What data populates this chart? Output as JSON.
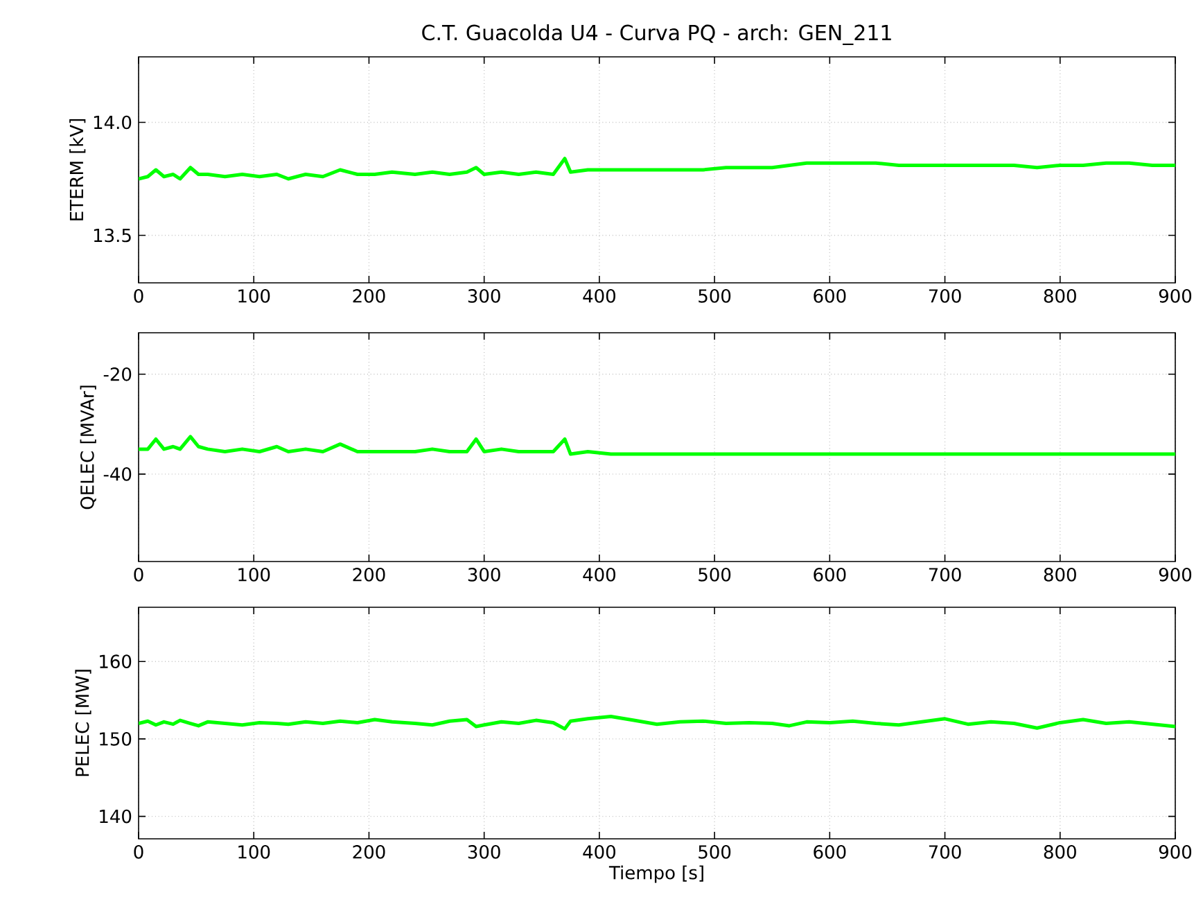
{
  "chart_data": [
    {
      "type": "line",
      "title": "C.T. Guacolda U4 - Curva PQ - arch: GEN_211",
      "ylabel": "ETERM [kV]",
      "xlim": [
        0,
        900
      ],
      "xticks": [
        0,
        100,
        200,
        300,
        400,
        500,
        600,
        700,
        800,
        900
      ],
      "ylim": [
        13.29,
        14.29
      ],
      "yticks": [
        {
          "value": 13.5,
          "label": "13.5"
        },
        {
          "value": 14,
          "label": "14.0"
        }
      ],
      "grid": true,
      "line_style": "solid",
      "series": [
        {
          "color": "#00ff00",
          "x": [
            0,
            8,
            15,
            22,
            30,
            36,
            45,
            52,
            60,
            75,
            90,
            105,
            120,
            130,
            145,
            160,
            175,
            190,
            205,
            220,
            240,
            255,
            270,
            285,
            293,
            300,
            315,
            330,
            345,
            360,
            370,
            375,
            390,
            410,
            430,
            450,
            470,
            490,
            510,
            530,
            550,
            565,
            580,
            600,
            620,
            640,
            660,
            680,
            700,
            720,
            740,
            760,
            780,
            800,
            820,
            840,
            860,
            880,
            900
          ],
          "values": [
            13.75,
            13.76,
            13.79,
            13.76,
            13.77,
            13.75,
            13.8,
            13.77,
            13.77,
            13.76,
            13.77,
            13.76,
            13.77,
            13.75,
            13.77,
            13.76,
            13.79,
            13.77,
            13.77,
            13.78,
            13.77,
            13.78,
            13.77,
            13.78,
            13.8,
            13.77,
            13.78,
            13.77,
            13.78,
            13.77,
            13.84,
            13.78,
            13.79,
            13.79,
            13.79,
            13.79,
            13.79,
            13.79,
            13.8,
            13.8,
            13.8,
            13.81,
            13.82,
            13.82,
            13.82,
            13.82,
            13.81,
            13.81,
            13.81,
            13.81,
            13.81,
            13.81,
            13.8,
            13.81,
            13.81,
            13.82,
            13.82,
            13.81,
            13.81
          ]
        }
      ]
    },
    {
      "type": "line",
      "ylabel": "QELEC [MVAr]",
      "xlim": [
        0,
        900
      ],
      "xticks": [
        0,
        100,
        200,
        300,
        400,
        500,
        600,
        700,
        800,
        900
      ],
      "ylim": [
        -57.5,
        -11.7
      ],
      "yticks": [
        -40,
        -20
      ],
      "grid": true,
      "line_style": "solid",
      "series": [
        {
          "color": "#00ff00",
          "x": [
            0,
            8,
            15,
            22,
            30,
            36,
            45,
            52,
            60,
            75,
            90,
            105,
            120,
            130,
            145,
            160,
            175,
            190,
            205,
            220,
            240,
            255,
            270,
            285,
            293,
            300,
            315,
            330,
            345,
            360,
            370,
            375,
            390,
            410,
            430,
            450,
            470,
            490,
            510,
            530,
            550,
            565,
            580,
            600,
            620,
            640,
            660,
            680,
            700,
            720,
            740,
            760,
            780,
            800,
            820,
            840,
            860,
            880,
            900
          ],
          "values": [
            -35,
            -35,
            -33,
            -35,
            -34.5,
            -35,
            -32.5,
            -34.5,
            -35,
            -35.5,
            -35,
            -35.5,
            -34.5,
            -35.5,
            -35,
            -35.5,
            -34,
            -35.5,
            -35.5,
            -35.5,
            -35.5,
            -35,
            -35.5,
            -35.5,
            -33,
            -35.5,
            -35,
            -35.5,
            -35.5,
            -35.5,
            -33,
            -36,
            -35.5,
            -36,
            -36,
            -36,
            -36,
            -36,
            -36,
            -36,
            -36,
            -36,
            -36,
            -36,
            -36,
            -36,
            -36,
            -36,
            -36,
            -36,
            -36,
            -36,
            -36,
            -36,
            -36,
            -36,
            -36,
            -36,
            -36
          ]
        }
      ]
    },
    {
      "type": "line",
      "xlabel": "Tiempo [s]",
      "ylabel": "PELEC [MW]",
      "xlim": [
        0,
        900
      ],
      "xticks": [
        0,
        100,
        200,
        300,
        400,
        500,
        600,
        700,
        800,
        900
      ],
      "ylim": [
        137.1,
        167
      ],
      "yticks": [
        140,
        150,
        160
      ],
      "grid": true,
      "line_style": "solid",
      "series": [
        {
          "color": "#00ff00",
          "x": [
            0,
            8,
            15,
            22,
            30,
            36,
            45,
            52,
            60,
            75,
            90,
            105,
            120,
            130,
            145,
            160,
            175,
            190,
            205,
            220,
            240,
            255,
            270,
            285,
            293,
            300,
            315,
            330,
            345,
            360,
            370,
            375,
            390,
            410,
            430,
            450,
            470,
            490,
            510,
            530,
            550,
            565,
            580,
            600,
            620,
            640,
            660,
            680,
            700,
            720,
            740,
            760,
            780,
            800,
            820,
            840,
            860,
            880,
            900
          ],
          "values": [
            152,
            152.3,
            151.8,
            152.2,
            151.9,
            152.4,
            152,
            151.7,
            152.2,
            152,
            151.8,
            152.1,
            152,
            151.9,
            152.2,
            152,
            152.3,
            152.1,
            152.5,
            152.2,
            152,
            151.8,
            152.3,
            152.5,
            151.6,
            151.8,
            152.2,
            152,
            152.4,
            152.1,
            151.3,
            152.3,
            152.6,
            152.9,
            152.4,
            151.9,
            152.2,
            152.3,
            152,
            152.1,
            152,
            151.7,
            152.2,
            152.1,
            152.3,
            152,
            151.8,
            152.2,
            152.6,
            151.9,
            152.2,
            152,
            151.4,
            152.1,
            152.5,
            152,
            152.2,
            151.9,
            151.6
          ]
        }
      ]
    }
  ]
}
